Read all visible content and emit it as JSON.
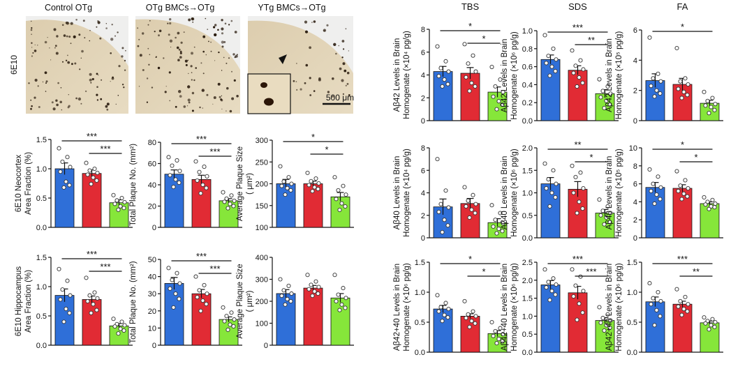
{
  "figure": {
    "micrographs": {
      "titles": [
        "Control OTg",
        "OTg BMCs→OTg",
        "YTg BMCs→OTg"
      ],
      "row_label": "6E10",
      "scale_bar": "500 μm"
    },
    "colors": {
      "control": "#2f6fd8",
      "otg": "#e12b34",
      "ytg": "#86e63a"
    }
  },
  "chart_data": [
    {
      "id": "neo-area",
      "type": "bar",
      "title": "",
      "ylabel": [
        "6E10 Neocortex",
        "Area Fraction (%)"
      ],
      "ylim": [
        0,
        1.5
      ],
      "yticks": [
        "0.0",
        "0.5",
        "1.0",
        "1.5"
      ],
      "values": [
        1.0,
        0.92,
        0.42
      ],
      "errors": [
        0.1,
        0.06,
        0.05
      ],
      "points": [
        [
          1.35,
          1.2,
          1.12,
          1.03,
          0.95,
          0.78,
          0.72,
          0.68
        ],
        [
          1.1,
          1.0,
          0.97,
          0.93,
          0.9,
          0.85,
          0.8,
          0.74
        ],
        [
          0.55,
          0.5,
          0.46,
          0.43,
          0.4,
          0.36,
          0.33,
          0.3
        ]
      ],
      "sig": [
        {
          "from": 0,
          "to": 2,
          "label": "***"
        },
        {
          "from": 1,
          "to": 2,
          "label": "***"
        }
      ]
    },
    {
      "id": "neo-count",
      "type": "bar",
      "title": "",
      "ylabel": [
        "Total Plaque No. (mm²)"
      ],
      "ylim": [
        0,
        80
      ],
      "yticks": [
        "0",
        "20",
        "40",
        "60",
        "80"
      ],
      "values": [
        50,
        45,
        25
      ],
      "errors": [
        4,
        4,
        2
      ],
      "points": [
        [
          66,
          63,
          58,
          53,
          49,
          45,
          42,
          38
        ],
        [
          62,
          57,
          52,
          48,
          44,
          40,
          37,
          32
        ],
        [
          33,
          30,
          27,
          25,
          24,
          22,
          20,
          18
        ]
      ],
      "sig": [
        {
          "from": 0,
          "to": 2,
          "label": "***"
        },
        {
          "from": 1,
          "to": 2,
          "label": "***"
        }
      ]
    },
    {
      "id": "neo-size",
      "type": "bar",
      "title": "",
      "ylabel": [
        "Average Plaque Size",
        "( μm²)"
      ],
      "ylim": [
        100,
        300
      ],
      "yticks": [
        "100",
        "150",
        "200",
        "250",
        "300"
      ],
      "values": [
        200,
        200,
        170
      ],
      "errors": [
        10,
        6,
        10
      ],
      "points": [
        [
          240,
          215,
          205,
          200,
          195,
          190,
          185,
          175
        ],
        [
          225,
          212,
          206,
          201,
          197,
          192,
          188,
          183
        ],
        [
          215,
          195,
          185,
          175,
          165,
          155,
          148,
          140
        ]
      ],
      "sig": [
        {
          "from": 0,
          "to": 2,
          "label": "*"
        },
        {
          "from": 1,
          "to": 2,
          "label": "*"
        }
      ]
    },
    {
      "id": "hip-area",
      "type": "bar",
      "title": "",
      "ylabel": [
        "6E10 Hippocampus",
        "Area Fraction (%)"
      ],
      "ylim": [
        0,
        1.5
      ],
      "yticks": [
        "0.0",
        "0.5",
        "1.0",
        "1.5"
      ],
      "values": [
        0.85,
        0.78,
        0.33
      ],
      "errors": [
        0.11,
        0.06,
        0.04
      ],
      "points": [
        [
          1.3,
          1.1,
          0.95,
          0.85,
          0.78,
          0.62,
          0.55,
          0.4
        ],
        [
          1.15,
          0.9,
          0.85,
          0.8,
          0.75,
          0.7,
          0.6,
          0.55
        ],
        [
          0.45,
          0.4,
          0.36,
          0.34,
          0.32,
          0.28,
          0.25,
          0.2
        ]
      ],
      "sig": [
        {
          "from": 0,
          "to": 2,
          "label": "***"
        },
        {
          "from": 1,
          "to": 2,
          "label": "***"
        }
      ]
    },
    {
      "id": "hip-count",
      "type": "bar",
      "title": "",
      "ylabel": [
        "Total Plaque No. (mm²)"
      ],
      "ylim": [
        0,
        50
      ],
      "yticks": [
        "0",
        "10",
        "20",
        "30",
        "40",
        "50"
      ],
      "values": [
        36,
        30,
        15
      ],
      "errors": [
        3.5,
        2.5,
        1.5
      ],
      "points": [
        [
          45,
          42,
          38,
          36,
          33,
          30,
          27,
          22
        ],
        [
          40,
          35,
          32,
          30,
          28,
          26,
          24,
          20
        ],
        [
          22,
          19,
          17,
          15,
          14,
          12,
          11,
          9
        ]
      ],
      "sig": [
        {
          "from": 0,
          "to": 2,
          "label": "***"
        },
        {
          "from": 1,
          "to": 2,
          "label": "***"
        }
      ]
    },
    {
      "id": "hip-size",
      "type": "bar",
      "title": "",
      "ylabel": [
        "Average Plaque Size",
        "( μm²)"
      ],
      "ylim": [
        0,
        400
      ],
      "yticks": [
        "0",
        "100",
        "200",
        "300",
        "400"
      ],
      "values": [
        235,
        260,
        215
      ],
      "errors": [
        18,
        12,
        20
      ],
      "points": [
        [
          300,
          270,
          250,
          235,
          225,
          210,
          200,
          185
        ],
        [
          320,
          290,
          275,
          265,
          255,
          245,
          235,
          225
        ],
        [
          320,
          260,
          230,
          215,
          200,
          185,
          170,
          160
        ]
      ],
      "sig": []
    },
    {
      "id": "ab42-tbs",
      "type": "bar",
      "title": "TBS",
      "ylabel": [
        "Aβ42 Levels in Brain",
        "Homogenate (×10⁴ pg/g)"
      ],
      "ylim": [
        0,
        8
      ],
      "yticks": [
        "0",
        "2",
        "4",
        "6",
        "8"
      ],
      "values": [
        4.3,
        4.15,
        2.5
      ],
      "errors": [
        0.45,
        0.5,
        0.45
      ],
      "points": [
        [
          6.5,
          5.2,
          4.6,
          4.3,
          3.9,
          3.6,
          3.2,
          3.0
        ],
        [
          6.7,
          5.7,
          5.0,
          4.3,
          3.8,
          3.3,
          3.0,
          2.6
        ],
        [
          4.7,
          3.6,
          3.0,
          2.5,
          2.1,
          1.7,
          1.4,
          1.0
        ]
      ],
      "sig": [
        {
          "from": 0,
          "to": 2,
          "label": "*"
        },
        {
          "from": 1,
          "to": 2,
          "label": "*"
        }
      ]
    },
    {
      "id": "ab42-sds",
      "type": "bar",
      "title": "SDS",
      "ylabel": [
        "Aβ42 Levels in Brain",
        "Homogenate (×10⁶ pg/g)"
      ],
      "ylim": [
        0,
        1.0
      ],
      "yticks": [
        "0.0",
        "0.2",
        "0.4",
        "0.6",
        "0.8",
        "1.0"
      ],
      "values": [
        0.68,
        0.56,
        0.3
      ],
      "errors": [
        0.05,
        0.05,
        0.045
      ],
      "points": [
        [
          0.95,
          0.8,
          0.72,
          0.68,
          0.64,
          0.6,
          0.55,
          0.5
        ],
        [
          0.78,
          0.67,
          0.61,
          0.57,
          0.53,
          0.48,
          0.42,
          0.38
        ],
        [
          0.46,
          0.38,
          0.33,
          0.3,
          0.26,
          0.22,
          0.18,
          0.14
        ]
      ],
      "sig": [
        {
          "from": 0,
          "to": 2,
          "label": "***"
        },
        {
          "from": 1,
          "to": 2,
          "label": "**"
        }
      ]
    },
    {
      "id": "ab42-fa",
      "type": "bar",
      "title": "FA",
      "ylabel": [
        "Aβ42 Levels in Brain",
        "Homogenate (×10⁵ pg/g)"
      ],
      "ylim": [
        0,
        6
      ],
      "yticks": [
        "0",
        "2",
        "4",
        "6"
      ],
      "values": [
        2.65,
        2.4,
        1.15
      ],
      "errors": [
        0.45,
        0.4,
        0.2
      ],
      "points": [
        [
          5.5,
          3.1,
          2.8,
          2.6,
          2.3,
          2.0,
          1.8,
          1.6
        ],
        [
          4.8,
          2.8,
          2.6,
          2.4,
          2.1,
          1.9,
          1.7,
          1.5
        ],
        [
          1.9,
          1.5,
          1.3,
          1.1,
          1.0,
          0.9,
          0.7,
          0.5
        ]
      ],
      "sig": [
        {
          "from": 0,
          "to": 2,
          "label": "*"
        }
      ]
    },
    {
      "id": "ab40-tbs",
      "type": "bar",
      "title": "",
      "ylabel": [
        "Aβ40 Levels in Brain",
        "Homogenate (×10⁴ pg/g)"
      ],
      "ylim": [
        0,
        8
      ],
      "yticks": [
        "0",
        "2",
        "4",
        "6",
        "8"
      ],
      "values": [
        2.75,
        3.05,
        1.35
      ],
      "errors": [
        0.7,
        0.45,
        0.35
      ],
      "points": [
        [
          7.0,
          4.2,
          3.0,
          2.7,
          2.3,
          1.6,
          1.1,
          0.5
        ],
        [
          4.5,
          3.8,
          3.3,
          3.0,
          2.8,
          2.5,
          2.2,
          1.8
        ],
        [
          2.9,
          2.2,
          1.6,
          1.3,
          1.0,
          0.8,
          0.6,
          0.4
        ]
      ],
      "sig": []
    },
    {
      "id": "ab40-sds",
      "type": "bar",
      "title": "",
      "ylabel": [
        "Aβ40 Levels in Brain",
        "Homogenate (×10⁶ pg/g)"
      ],
      "ylim": [
        0,
        2.0
      ],
      "yticks": [
        "0.0",
        "0.5",
        "1.0",
        "1.5",
        "2.0"
      ],
      "values": [
        1.2,
        1.08,
        0.55
      ],
      "errors": [
        0.14,
        0.17,
        0.08
      ],
      "points": [
        [
          1.65,
          1.5,
          1.3,
          1.2,
          1.1,
          1.0,
          0.9,
          0.7
        ],
        [
          1.6,
          1.45,
          1.35,
          1.1,
          1.0,
          0.8,
          0.65,
          0.55
        ],
        [
          0.85,
          0.7,
          0.6,
          0.55,
          0.5,
          0.45,
          0.35,
          0.3
        ]
      ],
      "sig": [
        {
          "from": 0,
          "to": 2,
          "label": "**"
        },
        {
          "from": 1,
          "to": 2,
          "label": "*"
        }
      ]
    },
    {
      "id": "ab40-fa",
      "type": "bar",
      "title": "",
      "ylabel": [
        "Aβ40 Levels in Brain",
        "Homogenate (×10⁵ pg/g)"
      ],
      "ylim": [
        0,
        10
      ],
      "yticks": [
        "0",
        "2",
        "4",
        "6",
        "8",
        "10"
      ],
      "values": [
        5.6,
        5.5,
        3.8
      ],
      "errors": [
        0.55,
        0.4,
        0.2
      ],
      "points": [
        [
          7.6,
          6.8,
          6.0,
          5.6,
          5.2,
          4.8,
          4.3,
          3.8
        ],
        [
          7.4,
          6.4,
          5.8,
          5.5,
          5.2,
          4.9,
          4.6,
          4.3
        ],
        [
          4.5,
          4.2,
          4.0,
          3.8,
          3.7,
          3.5,
          3.4,
          3.2
        ]
      ],
      "sig": [
        {
          "from": 0,
          "to": 2,
          "label": "*"
        },
        {
          "from": 1,
          "to": 2,
          "label": "*"
        }
      ]
    },
    {
      "id": "ab4240-tbs",
      "type": "bar",
      "title": "",
      "ylabel": [
        "Aβ42+40 Levels in Brain",
        "Homogenate (×10⁶ pg/g)"
      ],
      "ylim": [
        0,
        1.5
      ],
      "yticks": [
        "0.0",
        "0.5",
        "1.0",
        "1.5"
      ],
      "values": [
        0.72,
        0.6,
        0.31
      ],
      "errors": [
        0.06,
        0.04,
        0.05
      ],
      "points": [
        [
          0.95,
          0.82,
          0.75,
          0.72,
          0.68,
          0.62,
          0.58,
          0.52
        ],
        [
          0.85,
          0.68,
          0.63,
          0.6,
          0.57,
          0.52,
          0.48,
          0.42
        ],
        [
          0.5,
          0.4,
          0.35,
          0.3,
          0.27,
          0.22,
          0.18,
          0.15
        ]
      ],
      "sig": [
        {
          "from": 0,
          "to": 2,
          "label": "*"
        },
        {
          "from": 1,
          "to": 2,
          "label": "*"
        }
      ]
    },
    {
      "id": "ab4240-sds",
      "type": "bar",
      "title": "",
      "ylabel": [
        "Aβ42+40 Levels in Brain",
        "Homogenate (×10⁶ pg/g)"
      ],
      "ylim": [
        0,
        2.5
      ],
      "yticks": [
        "0.0",
        "0.5",
        "1.0",
        "1.5",
        "2.0",
        "2.5"
      ],
      "values": [
        1.87,
        1.65,
        0.88
      ],
      "errors": [
        0.12,
        0.18,
        0.08
      ],
      "points": [
        [
          2.3,
          2.05,
          1.95,
          1.88,
          1.8,
          1.7,
          1.6,
          1.45
        ],
        [
          2.3,
          2.1,
          1.85,
          1.7,
          1.55,
          1.35,
          1.1,
          0.9
        ],
        [
          1.25,
          1.05,
          0.95,
          0.88,
          0.82,
          0.75,
          0.68,
          0.6
        ]
      ],
      "sig": [
        {
          "from": 0,
          "to": 2,
          "label": "***"
        },
        {
          "from": 1,
          "to": 2,
          "label": "***"
        }
      ]
    },
    {
      "id": "ab4240-fa",
      "type": "bar",
      "title": "",
      "ylabel": [
        "Aβ42+40 Levels in Brain",
        "Homogenate (×10⁶ pg/g)"
      ],
      "ylim": [
        0,
        1.5
      ],
      "yticks": [
        "0.0",
        "0.5",
        "1.0",
        "1.5"
      ],
      "values": [
        0.84,
        0.8,
        0.49
      ],
      "errors": [
        0.08,
        0.05,
        0.03
      ],
      "points": [
        [
          1.15,
          1.0,
          0.9,
          0.85,
          0.8,
          0.7,
          0.6,
          0.45
        ],
        [
          1.05,
          0.92,
          0.85,
          0.8,
          0.76,
          0.72,
          0.68,
          0.62
        ],
        [
          0.58,
          0.55,
          0.52,
          0.5,
          0.48,
          0.45,
          0.42,
          0.38
        ]
      ],
      "sig": [
        {
          "from": 0,
          "to": 2,
          "label": "***"
        },
        {
          "from": 1,
          "to": 2,
          "label": "**"
        }
      ]
    }
  ]
}
